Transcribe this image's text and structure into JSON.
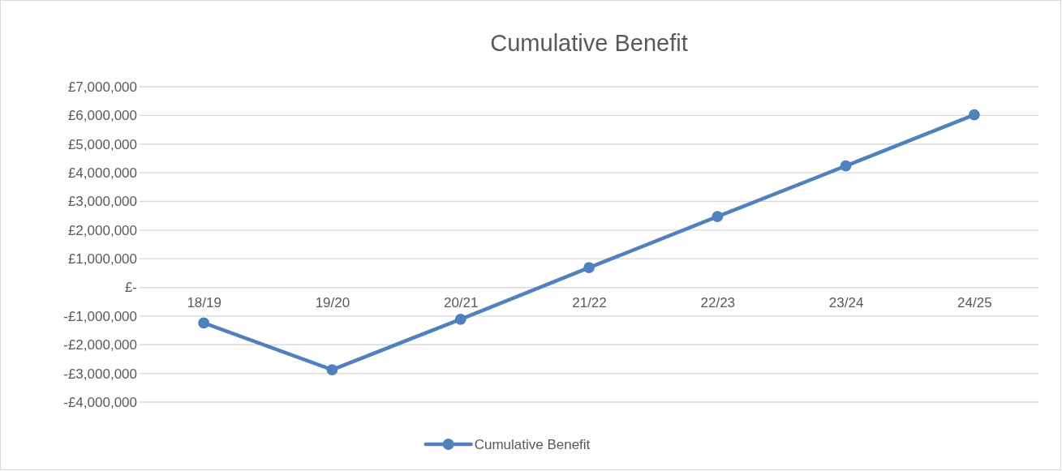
{
  "chart_data": {
    "type": "line",
    "title": "Cumulative Benefit",
    "categories": [
      "18/19",
      "19/20",
      "20/21",
      "21/22",
      "22/23",
      "23/24",
      "24/25"
    ],
    "series": [
      {
        "name": "Cumulative Benefit",
        "color": "#4f81bd",
        "values": [
          -1240000,
          -2870000,
          -1110000,
          690000,
          2470000,
          4240000,
          6020000
        ]
      }
    ],
    "ylim": [
      -4000000,
      7000000
    ],
    "yticks": [
      {
        "value": -4000000,
        "label": "-£4,000,000"
      },
      {
        "value": -3000000,
        "label": "-£3,000,000"
      },
      {
        "value": -2000000,
        "label": "-£2,000,000"
      },
      {
        "value": -1000000,
        "label": "-£1,000,000"
      },
      {
        "value": 0,
        "label": "£-"
      },
      {
        "value": 1000000,
        "label": "£1,000,000"
      },
      {
        "value": 2000000,
        "label": "£2,000,000"
      },
      {
        "value": 3000000,
        "label": "£3,000,000"
      },
      {
        "value": 4000000,
        "label": "£4,000,000"
      },
      {
        "value": 5000000,
        "label": "£5,000,000"
      },
      {
        "value": 6000000,
        "label": "£6,000,000"
      },
      {
        "value": 7000000,
        "label": "£7,000,000"
      }
    ],
    "grid": "y",
    "legend": "bottom",
    "marker": "circle",
    "line_style": "solid"
  }
}
